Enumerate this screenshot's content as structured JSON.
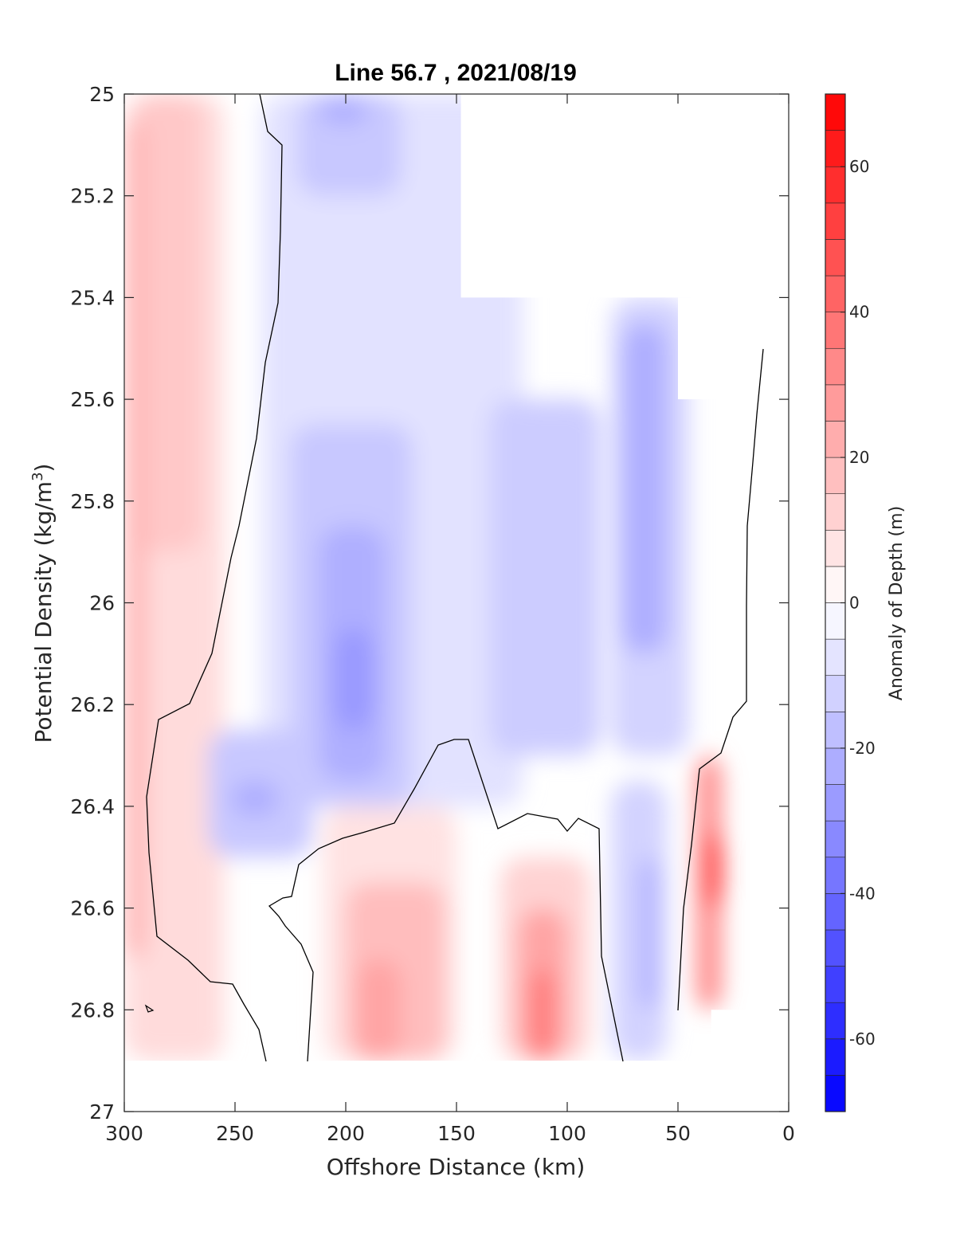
{
  "chart_data": {
    "type": "heatmap",
    "title": "Line 56.7 , 2021/08/19",
    "xlabel": "Offshore Distance (km)",
    "ylabel_main": "Potential Density (kg/m",
    "ylabel_sup": "3",
    "ylabel_close": ")",
    "xlim": [
      300,
      0
    ],
    "ylim": [
      25,
      27
    ],
    "x_reversed": true,
    "y_reversed": true,
    "xticks": [
      300,
      250,
      200,
      150,
      100,
      50,
      0
    ],
    "xtick_labels": [
      "300",
      "250",
      "200",
      "150",
      "100",
      "50",
      "0"
    ],
    "yticks": [
      25,
      25.2,
      25.4,
      25.6,
      25.8,
      26,
      26.2,
      26.4,
      26.6,
      26.8,
      27
    ],
    "ytick_labels": [
      "25",
      "25.2",
      "25.4",
      "25.6",
      "25.8",
      "26",
      "26.2",
      "26.4",
      "26.6",
      "26.8",
      "27"
    ],
    "colorbar": {
      "label": "Anomaly of Depth (m)",
      "range": [
        -70,
        70
      ],
      "level_step": 5,
      "ticks": [
        -60,
        -40,
        -20,
        0,
        20,
        40,
        60
      ],
      "tick_labels": [
        "-60",
        "-40",
        "-20",
        "0",
        "20",
        "40",
        "60"
      ],
      "negative_color": "#0000ff",
      "positive_color": "#ff0000",
      "zero_color": "#ffffff"
    },
    "contour_level": 0,
    "cells": [
      {
        "x": [
          300,
          255
        ],
        "y": [
          25.0,
          26.9
        ],
        "value": 10
      },
      {
        "x": [
          295,
          265
        ],
        "y": [
          25.0,
          25.9
        ],
        "value": 15
      },
      {
        "x": [
          300,
          290
        ],
        "y": [
          25.05,
          26.7
        ],
        "value": 20
      },
      {
        "x": [
          238,
          120
        ],
        "y": [
          25.0,
          26.4
        ],
        "value": -8
      },
      {
        "x": [
          222,
          175
        ],
        "y": [
          25.0,
          25.2
        ],
        "value": -15
      },
      {
        "x": [
          212,
          190
        ],
        "y": [
          25.0,
          25.06
        ],
        "value": -22
      },
      {
        "x": [
          225,
          170
        ],
        "y": [
          25.65,
          26.4
        ],
        "value": -15
      },
      {
        "x": [
          212,
          182
        ],
        "y": [
          25.85,
          26.35
        ],
        "value": -22
      },
      {
        "x": [
          205,
          188
        ],
        "y": [
          26.05,
          26.25
        ],
        "value": -28
      },
      {
        "x": [
          262,
          215
        ],
        "y": [
          26.25,
          26.5
        ],
        "value": -15
      },
      {
        "x": [
          252,
          230
        ],
        "y": [
          26.35,
          26.42
        ],
        "value": -22
      },
      {
        "x": [
          135,
          85
        ],
        "y": [
          25.6,
          26.3
        ],
        "value": -14
      },
      {
        "x": [
          80,
          45
        ],
        "y": [
          25.4,
          26.3
        ],
        "value": -12
      },
      {
        "x": [
          75,
          55
        ],
        "y": [
          25.45,
          26.1
        ],
        "value": -22
      },
      {
        "x": [
          80,
          55
        ],
        "y": [
          26.35,
          26.9
        ],
        "value": -12
      },
      {
        "x": [
          68,
          58
        ],
        "y": [
          26.5,
          26.8
        ],
        "value": -20
      },
      {
        "x": [
          210,
          150
        ],
        "y": [
          26.4,
          26.9
        ],
        "value": 8
      },
      {
        "x": [
          200,
          155
        ],
        "y": [
          26.55,
          26.9
        ],
        "value": 18
      },
      {
        "x": [
          195,
          175
        ],
        "y": [
          26.7,
          26.9
        ],
        "value": 25
      },
      {
        "x": [
          130,
          90
        ],
        "y": [
          26.5,
          26.9
        ],
        "value": 12
      },
      {
        "x": [
          122,
          100
        ],
        "y": [
          26.6,
          26.9
        ],
        "value": 25
      },
      {
        "x": [
          118,
          105
        ],
        "y": [
          26.72,
          26.9
        ],
        "value": 35
      },
      {
        "x": [
          42,
          30
        ],
        "y": [
          26.3,
          26.8
        ],
        "value": 30
      },
      {
        "x": [
          38,
          30
        ],
        "y": [
          26.45,
          26.6
        ],
        "value": 55
      }
    ],
    "blank_regions": [
      {
        "x": [
          148,
          0
        ],
        "y": [
          25.0,
          25.4
        ]
      },
      {
        "x": [
          50,
          0
        ],
        "y": [
          25.4,
          25.6
        ]
      },
      {
        "x": [
          300,
          0
        ],
        "y": [
          26.9,
          27.0
        ]
      },
      {
        "x": [
          35,
          0
        ],
        "y": [
          26.8,
          26.9
        ]
      }
    ]
  }
}
